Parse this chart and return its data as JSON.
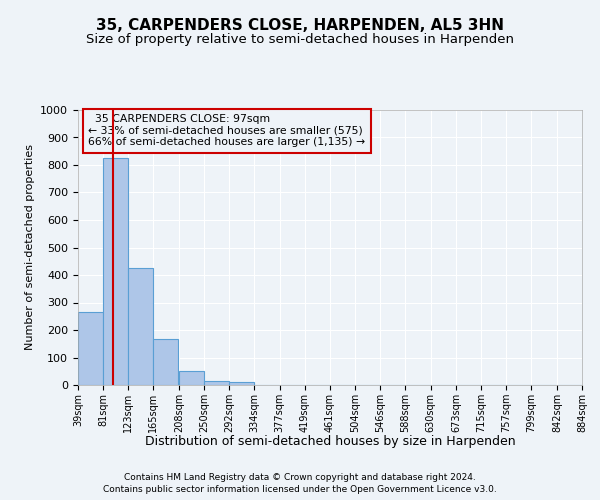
{
  "title": "35, CARPENDERS CLOSE, HARPENDEN, AL5 3HN",
  "subtitle": "Size of property relative to semi-detached houses in Harpenden",
  "xlabel": "Distribution of semi-detached houses by size in Harpenden",
  "ylabel": "Number of semi-detached properties",
  "footer_line1": "Contains HM Land Registry data © Crown copyright and database right 2024.",
  "footer_line2": "Contains public sector information licensed under the Open Government Licence v3.0.",
  "bins": [
    39,
    81,
    123,
    165,
    208,
    250,
    292,
    334,
    377,
    419,
    461,
    504,
    546,
    588,
    630,
    673,
    715,
    757,
    799,
    842,
    884
  ],
  "bar_heights": [
    265,
    825,
    425,
    168,
    52,
    15,
    10,
    0,
    0,
    0,
    0,
    0,
    0,
    0,
    0,
    0,
    0,
    0,
    0,
    0
  ],
  "bar_color": "#aec6e8",
  "bar_edgecolor": "#5a9fd4",
  "property_size": 97,
  "property_label": "35 CARPENDERS CLOSE: 97sqm",
  "pct_smaller": 33,
  "count_smaller": 575,
  "pct_larger": 66,
  "count_larger": 1135,
  "vline_color": "#cc0000",
  "annotation_box_edgecolor": "#cc0000",
  "ylim": [
    0,
    1000
  ],
  "yticks": [
    0,
    100,
    200,
    300,
    400,
    500,
    600,
    700,
    800,
    900,
    1000
  ],
  "bg_color": "#eef3f8",
  "grid_color": "#ffffff",
  "title_fontsize": 11,
  "subtitle_fontsize": 9.5
}
